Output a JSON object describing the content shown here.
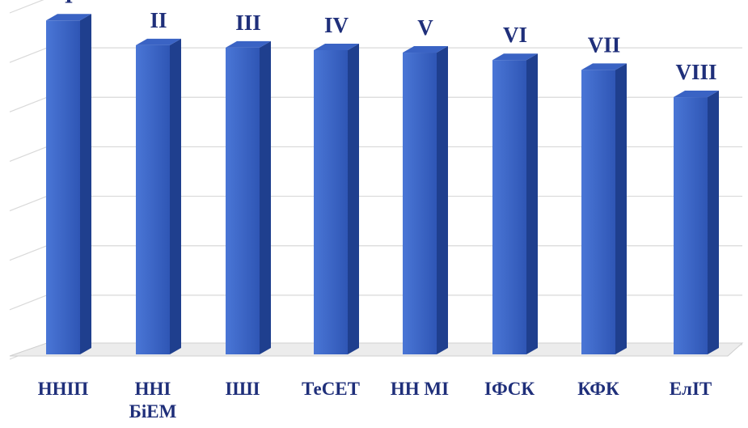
{
  "chart_data": {
    "type": "bar",
    "categories": [
      "ННІП",
      "ННІ БіЕМ",
      "ІШІ",
      "ТеСЕТ",
      "НН МІ",
      "ІФСК",
      "КФК",
      "ЕлІТ"
    ],
    "category_lines": [
      [
        "ННІП"
      ],
      [
        "ННІ",
        "БіЕМ"
      ],
      [
        "ІШІ"
      ],
      [
        "ТеСЕТ"
      ],
      [
        "НН МІ"
      ],
      [
        "ІФСК"
      ],
      [
        "КФК"
      ],
      [
        "ЕлІТ"
      ]
    ],
    "rank_labels": [
      "I",
      "II",
      "III",
      "IV",
      "V",
      "VI",
      "VII",
      "VIII"
    ],
    "values": [
      6.75,
      6.25,
      6.2,
      6.15,
      6.1,
      5.95,
      5.75,
      5.2
    ],
    "ylim": [
      0,
      7
    ],
    "grid": true,
    "legend": "none",
    "title": "",
    "xlabel": "",
    "ylabel": "",
    "colors": {
      "bar_front_top": "#4a76d6",
      "bar_front_bottom": "#2f56b5",
      "bar_side": "#1f3f8e",
      "bar_top": "#3a63c4",
      "label_text": "#1f2f7a",
      "grid": "#d9d9d9",
      "floor": "#cfcfcf"
    }
  }
}
